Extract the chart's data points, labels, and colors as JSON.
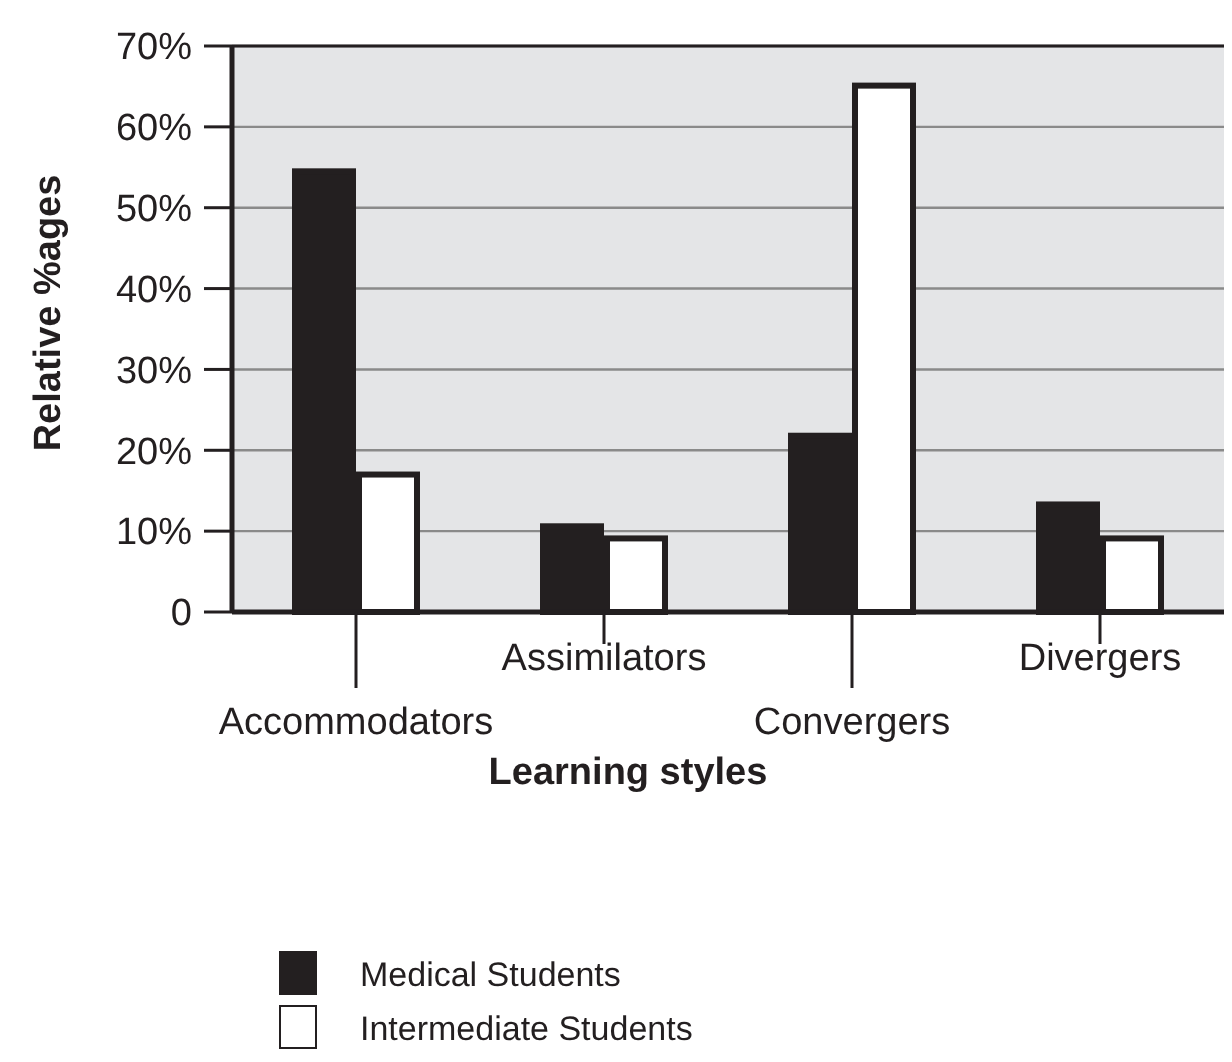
{
  "chart_data": {
    "type": "bar",
    "xlabel": "Learning styles",
    "ylabel": "Relative %ages",
    "categories": [
      "Accommodators",
      "Assimilators",
      "Convergers",
      "Divergers"
    ],
    "series": [
      {
        "name": "Medical Students",
        "color": "#231f20",
        "values": [
          54.5,
          10.6,
          21.8,
          13.3
        ]
      },
      {
        "name": "Intermediate Students",
        "color": "#ffffff",
        "values": [
          17.0,
          9.1,
          65.1,
          9.1
        ]
      }
    ],
    "ylim": [
      0,
      70
    ],
    "yticks": [
      0,
      {
        "value": 10,
        "label": "10%"
      },
      {
        "value": 20,
        "label": "20%"
      },
      {
        "value": 30,
        "label": "30%"
      },
      {
        "value": 40,
        "label": "40%"
      },
      {
        "value": 50,
        "label": "50%"
      },
      {
        "value": 60,
        "label": "60%"
      },
      {
        "value": 70,
        "label": "70%"
      }
    ],
    "grid": "y",
    "legend": "bottom"
  }
}
